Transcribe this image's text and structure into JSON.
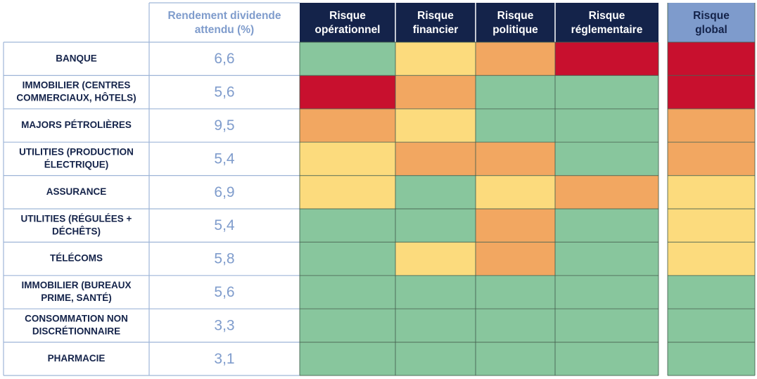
{
  "header": {
    "yield_title_line1": "Rendement dividende",
    "yield_title_line2": "attendu (%)",
    "risk_columns": [
      {
        "line1": "Risque",
        "line2": "opérationnel"
      },
      {
        "line1": "Risque",
        "line2": "financier"
      },
      {
        "line1": "Risque",
        "line2": "politique"
      },
      {
        "line1": "Risque",
        "line2": "réglementaire"
      }
    ],
    "global_column": {
      "line1": "Risque",
      "line2": "global"
    }
  },
  "colors": {
    "green": "#88c69d",
    "yellow": "#fcdb7d",
    "orange": "#f2a761",
    "red": "#c8102e",
    "header_dark": "#14234a",
    "header_global": "#7e9bcc",
    "yield_text": "#7f9ccc",
    "label_text": "#14234a",
    "grid_line": "#9fb6d8"
  },
  "chart_data": {
    "type": "heatmap",
    "scale": [
      "green",
      "yellow",
      "orange",
      "red"
    ],
    "rows": [
      {
        "label": [
          "BANQUE"
        ],
        "yield": "6,6",
        "risks": [
          "green",
          "yellow",
          "orange",
          "red"
        ],
        "global": "red"
      },
      {
        "label": [
          "IMMOBILIER (CENTRES",
          "COMMERCIAUX, HÔTELS)"
        ],
        "yield": "5,6",
        "risks": [
          "red",
          "orange",
          "green",
          "green"
        ],
        "global": "red"
      },
      {
        "label": [
          "MAJORS PÉTROLIÈRES"
        ],
        "yield": "9,5",
        "risks": [
          "orange",
          "yellow",
          "green",
          "green"
        ],
        "global": "orange"
      },
      {
        "label": [
          "UTILITIES (PRODUCTION",
          "ÉLECTRIQUE)"
        ],
        "yield": "5,4",
        "risks": [
          "yellow",
          "orange",
          "orange",
          "green"
        ],
        "global": "orange"
      },
      {
        "label": [
          "ASSURANCE"
        ],
        "yield": "6,9",
        "risks": [
          "yellow",
          "green",
          "yellow",
          "orange"
        ],
        "global": "yellow"
      },
      {
        "label": [
          "UTILITIES (RÉGULÉES +",
          "DÉCHÊTS)"
        ],
        "yield": "5,4",
        "risks": [
          "green",
          "green",
          "orange",
          "green"
        ],
        "global": "yellow"
      },
      {
        "label": [
          "TÉLÉCOMS"
        ],
        "yield": "5,8",
        "risks": [
          "green",
          "yellow",
          "orange",
          "green"
        ],
        "global": "yellow"
      },
      {
        "label": [
          "IMMOBILIER  (BUREAUX",
          "PRIME, SANTÉ)"
        ],
        "yield": "5,6",
        "risks": [
          "green",
          "green",
          "green",
          "green"
        ],
        "global": "green"
      },
      {
        "label": [
          "CONSOMMATION NON",
          "DISCRÉTIONNAIRE"
        ],
        "yield": "3,3",
        "risks": [
          "green",
          "green",
          "green",
          "green"
        ],
        "global": "green"
      },
      {
        "label": [
          "PHARMACIE"
        ],
        "yield": "3,1",
        "risks": [
          "green",
          "green",
          "green",
          "green"
        ],
        "global": "green"
      }
    ]
  }
}
